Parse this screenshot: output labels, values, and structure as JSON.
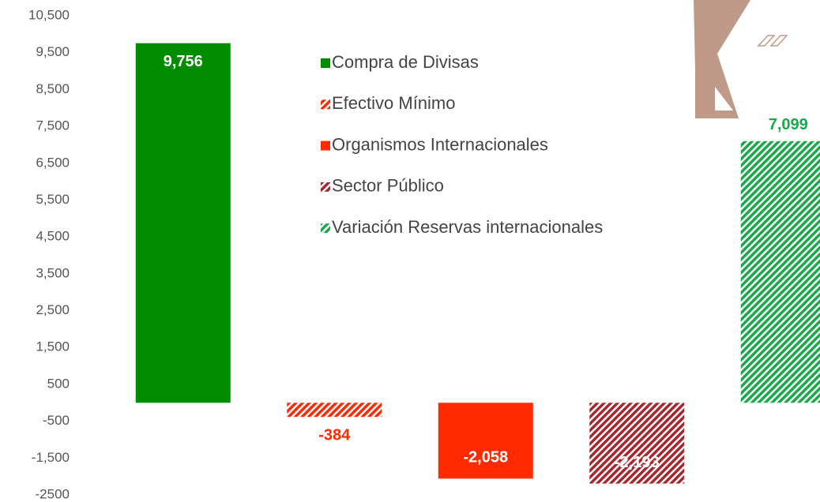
{
  "chart_data": {
    "type": "bar",
    "ylim": [
      -2500,
      10500
    ],
    "yticks": [
      -2500,
      {
        "value": -1500,
        "label": "-1,500"
      },
      -500,
      500,
      {
        "value": 1500,
        "label": "1,500"
      },
      {
        "value": 2500,
        "label": "2,500"
      },
      {
        "value": 3500,
        "label": "3,500"
      },
      {
        "value": 4500,
        "label": "4,500"
      },
      {
        "value": 5500,
        "label": "5,500"
      },
      {
        "value": 6500,
        "label": "6,500"
      },
      {
        "value": 7500,
        "label": "7,500"
      },
      {
        "value": 8500,
        "label": "8,500"
      },
      {
        "value": 9500,
        "label": "9,500"
      },
      {
        "value": 10500,
        "label": "10,500"
      }
    ],
    "series": [
      {
        "name": "Compra de Divisas",
        "color": "#008c00",
        "pattern": "solid",
        "values": [
          9756
        ],
        "value_labels": [
          "9,756"
        ]
      },
      {
        "name": "Efectivo Mínimo",
        "color": "#ff2a00",
        "pattern": "hatch",
        "values": [
          -384
        ]
      },
      {
        "name": "Organismos Internacionales",
        "color": "#ff2a00",
        "pattern": "solid",
        "values": [
          -2058
        ],
        "value_labels": [
          "-2,058"
        ]
      },
      {
        "name": "Sector Público",
        "color": "#a8272d",
        "pattern": "hatch",
        "values": [
          -2193
        ],
        "value_labels": [
          "-2,193"
        ]
      },
      {
        "name": "Variación Reservas internacionales",
        "color": "#1aa84b",
        "pattern": "hatch",
        "values": [
          7099
        ],
        "value_labels": [
          "7,099"
        ]
      }
    ]
  }
}
